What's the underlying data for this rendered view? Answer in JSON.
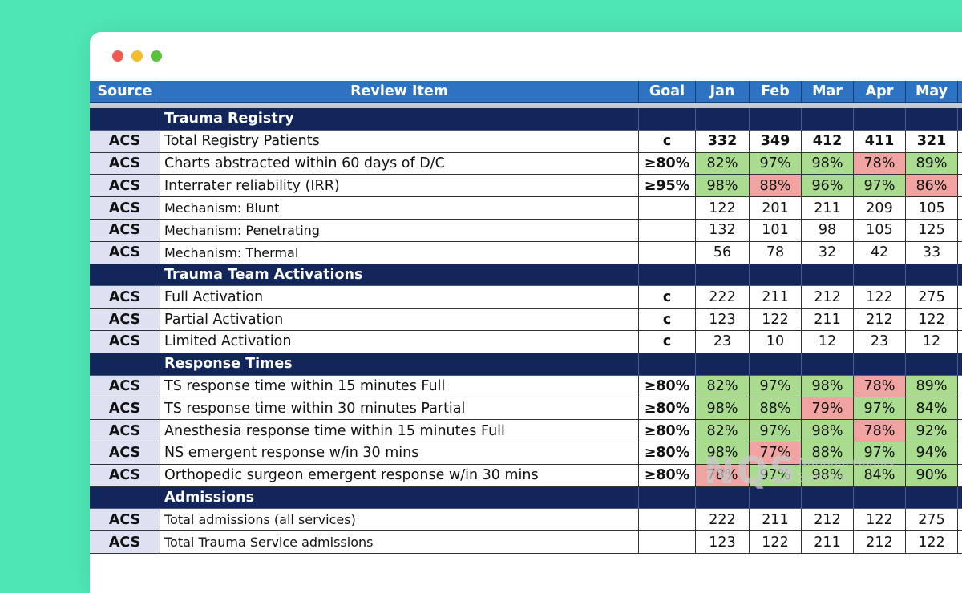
{
  "table": {
    "headers": [
      "Source",
      "Review Item",
      "Goal",
      "Jan",
      "Feb",
      "Mar",
      "Apr",
      "May"
    ],
    "palette": {
      "good": "#a9dc8f",
      "bad": "#f0a3a0"
    },
    "sections": [
      {
        "title": "Trauma Registry",
        "rows": [
          {
            "source": "ACS",
            "item": "Total Registry Patients",
            "goal": "c",
            "values": [
              332,
              349,
              412,
              411,
              321
            ],
            "bold": true
          },
          {
            "source": "ACS",
            "item": "Charts abstracted within 60 days of D/C",
            "goal": "≥80%",
            "values": [
              "82%",
              "97%",
              "98%",
              "78%",
              "89%"
            ],
            "fills": [
              "good",
              "good",
              "good",
              "bad",
              "good"
            ]
          },
          {
            "source": "ACS",
            "item": "Interrater reliability (IRR)",
            "goal": "≥95%",
            "values": [
              "98%",
              "88%",
              "96%",
              "97%",
              "86%"
            ],
            "fills": [
              "good",
              "bad",
              "good",
              "good",
              "bad"
            ]
          },
          {
            "source": "ACS",
            "item": "Mechanism: Blunt",
            "values": [
              122,
              201,
              211,
              209,
              105
            ],
            "small": true
          },
          {
            "source": "ACS",
            "item": "Mechanism: Penetrating",
            "values": [
              132,
              101,
              98,
              105,
              125
            ],
            "small": true
          },
          {
            "source": "ACS",
            "item": "Mechanism: Thermal",
            "values": [
              56,
              78,
              32,
              42,
              33
            ],
            "small": true
          }
        ]
      },
      {
        "title": "Trauma Team Activations",
        "rows": [
          {
            "source": "ACS",
            "item": "Full Activation",
            "goal": "c",
            "values": [
              222,
              211,
              212,
              122,
              275
            ]
          },
          {
            "source": "ACS",
            "item": "Partial Activation",
            "goal": "c",
            "values": [
              123,
              122,
              211,
              212,
              122
            ]
          },
          {
            "source": "ACS",
            "item": "Limited Activation",
            "goal": "c",
            "values": [
              23,
              10,
              12,
              23,
              12
            ]
          }
        ]
      },
      {
        "title": "Response Times",
        "rows": [
          {
            "source": "ACS",
            "item": "TS response time within 15 minutes Full",
            "goal": "≥80%",
            "values": [
              "82%",
              "97%",
              "98%",
              "78%",
              "89%"
            ],
            "fills": [
              "good",
              "good",
              "good",
              "bad",
              "good"
            ]
          },
          {
            "source": "ACS",
            "item": "TS response time within 30 minutes Partial",
            "goal": "≥80%",
            "values": [
              "98%",
              "88%",
              "79%",
              "97%",
              "84%"
            ],
            "fills": [
              "good",
              "good",
              "bad",
              "good",
              "good"
            ]
          },
          {
            "source": "ACS",
            "item": "Anesthesia response time within 15 minutes Full",
            "goal": "≥80%",
            "values": [
              "82%",
              "97%",
              "98%",
              "78%",
              "92%"
            ],
            "fills": [
              "good",
              "good",
              "good",
              "bad",
              "good"
            ]
          },
          {
            "source": "ACS",
            "item": "NS emergent response w/in 30 mins",
            "goal": "≥80%",
            "values": [
              "98%",
              "77%",
              "88%",
              "97%",
              "94%"
            ],
            "fills": [
              "good",
              "bad",
              "good",
              "good",
              "good"
            ]
          },
          {
            "source": "ACS",
            "item": "Orthopedic surgeon emergent response w/in 30 mins",
            "goal": "≥80%",
            "values": [
              "78%",
              "97%",
              "98%",
              "84%",
              "90%"
            ],
            "fills": [
              "bad",
              "good",
              "good",
              "good",
              "good"
            ]
          }
        ]
      },
      {
        "title": "Admissions",
        "rows": [
          {
            "source": "ACS",
            "item": "Total admissions (all services)",
            "values": [
              222,
              211,
              212,
              122,
              275
            ],
            "small": true
          },
          {
            "source": "ACS",
            "item": "Total Trauma Service admissions",
            "values": [
              123,
              122,
              211,
              212,
              122
            ],
            "small": true
          }
        ]
      }
    ]
  },
  "watermark": {
    "brand": "NQS",
    "name": [
      "National Quality",
      "Systems"
    ]
  }
}
